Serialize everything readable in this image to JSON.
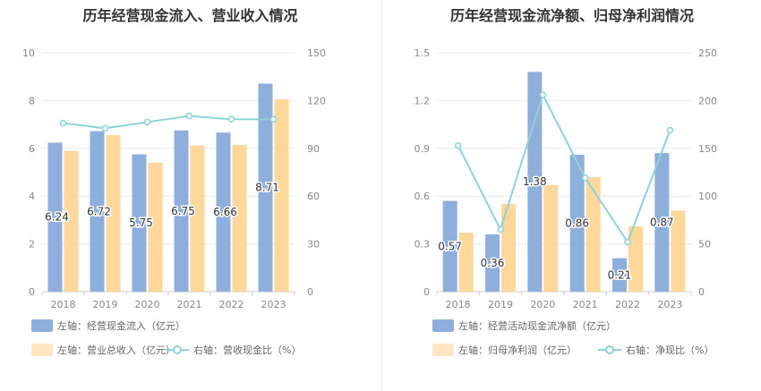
{
  "chart_data": [
    {
      "type": "bar",
      "title": "历年经营现金流入、营业收入情况",
      "categories": [
        "2018",
        "2019",
        "2020",
        "2021",
        "2022",
        "2023"
      ],
      "series": [
        {
          "name": "左轴：经营现金流入（亿元）",
          "axis": "left",
          "type": "bar",
          "color": "#8eaedc",
          "values": [
            6.24,
            6.72,
            5.75,
            6.75,
            6.66,
            8.71
          ],
          "data_labels": [
            "6.24",
            "6.72",
            "5.75",
            "6.75",
            "6.66",
            "8.71"
          ]
        },
        {
          "name": "左轴：营业总收入（亿元）",
          "axis": "left",
          "type": "bar",
          "color": "#fed79b",
          "values": [
            5.9,
            6.55,
            5.4,
            6.12,
            6.15,
            8.05
          ]
        },
        {
          "name": "右轴：营收现金比（%）",
          "axis": "right",
          "type": "line",
          "color": "#8dd3d8",
          "values": [
            105.8,
            102.6,
            106.5,
            110.3,
            108.3,
            108.2
          ]
        }
      ],
      "yaxis_left": {
        "min": 0,
        "max": 10,
        "ticks": [
          "0",
          "2",
          "4",
          "6",
          "8",
          "10"
        ]
      },
      "yaxis_right": {
        "min": 0,
        "max": 150,
        "ticks": [
          "0",
          "30",
          "60",
          "90",
          "120",
          "150"
        ]
      },
      "grid": true,
      "legend_position": "bottom-left"
    },
    {
      "type": "bar",
      "title": "历年经营现金流净额、归母净利润情况",
      "categories": [
        "2018",
        "2019",
        "2020",
        "2021",
        "2022",
        "2023"
      ],
      "series": [
        {
          "name": "左轴：经营活动现金流净额（亿元）",
          "axis": "left",
          "type": "bar",
          "color": "#8eaedc",
          "values": [
            0.57,
            0.36,
            1.38,
            0.86,
            0.21,
            0.87
          ],
          "data_labels": [
            "0.57",
            "0.36",
            "1.38",
            "0.86",
            "0.21",
            "0.87"
          ]
        },
        {
          "name": "左轴：归母净利润（亿元）",
          "axis": "left",
          "type": "bar",
          "color": "#fed79b",
          "values": [
            0.37,
            0.55,
            0.67,
            0.72,
            0.41,
            0.51
          ]
        },
        {
          "name": "右轴：净现比（%）",
          "axis": "right",
          "type": "line",
          "color": "#8dd3d8",
          "values": [
            153,
            65,
            206,
            119,
            52,
            169
          ]
        }
      ],
      "yaxis_left": {
        "min": 0,
        "max": 1.5,
        "ticks": [
          "0",
          "0.3",
          "0.6",
          "0.9",
          "1.2",
          "1.5"
        ]
      },
      "yaxis_right": {
        "min": 0,
        "max": 250,
        "ticks": [
          "0",
          "50",
          "100",
          "150",
          "200",
          "250"
        ]
      },
      "grid": true,
      "legend_position": "bottom-left"
    }
  ]
}
